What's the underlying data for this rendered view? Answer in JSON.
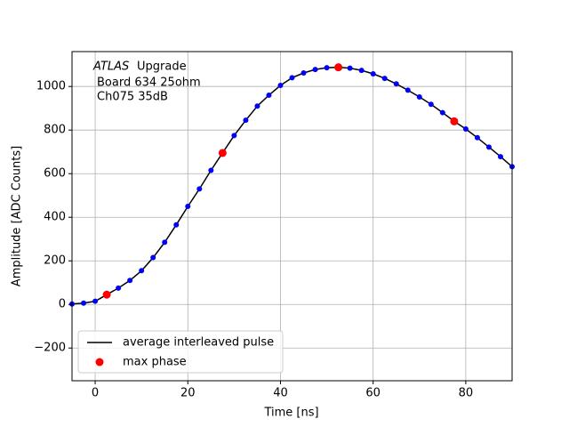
{
  "chart_data": {
    "type": "line",
    "annotations": [
      "ATLAS",
      "Upgrade",
      "Board 634 25ohm",
      "Ch075 35dB"
    ],
    "x_label": "Time [ns]",
    "y_label": "Amplitude [ADC Counts]",
    "xlim": [
      -5,
      90
    ],
    "xticks": [
      0,
      20,
      40,
      60,
      80
    ],
    "ylim": [
      -350,
      1160
    ],
    "yticks": [
      {
        "value": -200,
        "label": "−200"
      },
      0,
      200,
      400,
      600,
      800,
      1000
    ],
    "grid": true,
    "legend": "lower left",
    "series": [
      {
        "name": "average interleaved pulse",
        "type": "line",
        "color": "#000000",
        "marker_color": "#0000ff",
        "x": [
          -5,
          -2.5,
          0,
          2.5,
          5,
          7.5,
          10,
          12.5,
          15,
          17.5,
          20,
          22.5,
          25,
          27.5,
          30,
          32.5,
          35,
          37.5,
          40,
          42.5,
          45,
          47.5,
          50,
          52.5,
          55,
          57.5,
          60,
          62.5,
          65,
          67.5,
          70,
          72.5,
          75,
          77.5,
          80,
          82.5,
          85,
          87.5,
          90
        ],
        "values": [
          2,
          6,
          15,
          45,
          75,
          110,
          155,
          215,
          285,
          365,
          450,
          530,
          615,
          695,
          775,
          845,
          910,
          960,
          1005,
          1040,
          1062,
          1078,
          1086,
          1088,
          1084,
          1074,
          1058,
          1037,
          1012,
          983,
          952,
          918,
          880,
          840,
          805,
          765,
          722,
          678,
          632
        ]
      },
      {
        "name": "max phase",
        "type": "scatter",
        "color": "#ff0000",
        "x": [
          2.5,
          27.5,
          52.5,
          77.5
        ],
        "values": [
          45,
          695,
          1088,
          840
        ]
      }
    ]
  }
}
